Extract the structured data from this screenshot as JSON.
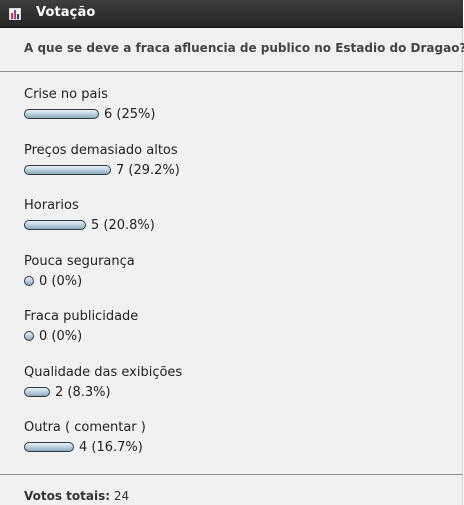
{
  "widget": {
    "title": "Votação",
    "icon": "poll-chart-icon"
  },
  "poll": {
    "question": "A que se deve a fraca afluencia de publico no Estadio do Dragao?",
    "options": [
      {
        "label": "Crise no pais",
        "votes": 6,
        "percent": 25,
        "result_text": "6 (25%)"
      },
      {
        "label": "Preços demasiado altos",
        "votes": 7,
        "percent": 29.2,
        "result_text": "7 (29.2%)"
      },
      {
        "label": "Horarios",
        "votes": 5,
        "percent": 20.8,
        "result_text": "5 (20.8%)"
      },
      {
        "label": "Pouca segurança",
        "votes": 0,
        "percent": 0,
        "result_text": "0 (0%)"
      },
      {
        "label": "Fraca publicidade",
        "votes": 0,
        "percent": 0,
        "result_text": "0 (0%)"
      },
      {
        "label": "Qualidade das exibições",
        "votes": 2,
        "percent": 8.3,
        "result_text": "2 (8.3%)"
      },
      {
        "label": "Outra ( comentar )",
        "votes": 4,
        "percent": 16.7,
        "result_text": "4 (16.7%)"
      }
    ],
    "total_label": "Votos totais:",
    "total_value": "24"
  },
  "colors": {
    "titlebar": "#2f2f2f",
    "panel_background": "#f1f1f1",
    "bar_fill": "#bfd4e2",
    "bar_border": "#2f3b44"
  }
}
